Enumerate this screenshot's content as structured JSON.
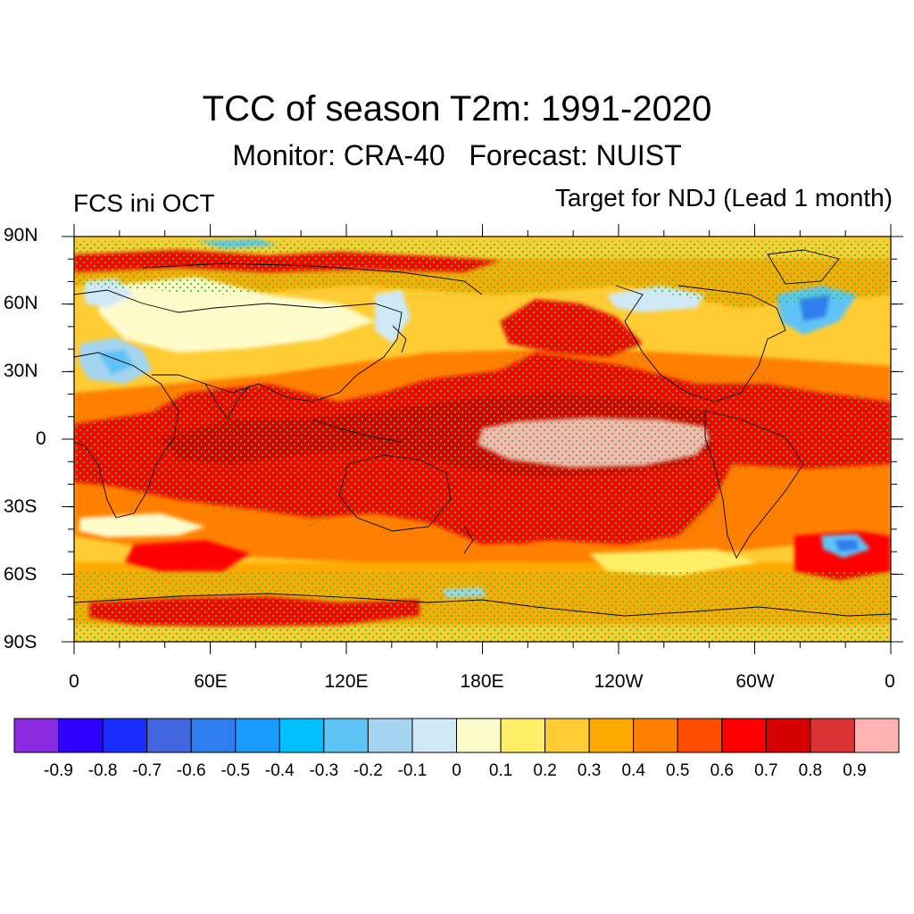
{
  "title": "TCC of season T2m: 1991-2020",
  "subtitle": "Monitor: CRA-40   Forecast: NUIST",
  "left_label": "FCS ini OCT",
  "right_label": "Target for NDJ (Lead 1 month)",
  "lat_labels": [
    "90N",
    "60N",
    "30N",
    "0",
    "30S",
    "60S",
    "90S"
  ],
  "lon_labels": [
    "0",
    "60E",
    "120E",
    "180E",
    "120W",
    "60W",
    "0"
  ],
  "colorbar": {
    "colors": [
      "#8a2be2",
      "#2d00ff",
      "#1a2eff",
      "#4166e0",
      "#2e7ef0",
      "#1a9bff",
      "#00c0ff",
      "#5ec4f5",
      "#a3d4f0",
      "#cfe9f7",
      "#fffccc",
      "#ffee66",
      "#ffcc33",
      "#ffaa00",
      "#ff8000",
      "#ff4d00",
      "#ff0000",
      "#d60000",
      "#d93333",
      "#ffb3b3"
    ],
    "labels": [
      "-0.9",
      "-0.8",
      "-0.7",
      "-0.6",
      "-0.5",
      "-0.4",
      "-0.3",
      "-0.2",
      "-0.1",
      "0",
      "0.1",
      "0.2",
      "0.3",
      "0.4",
      "0.5",
      "0.6",
      "0.7",
      "0.8",
      "0.9"
    ]
  },
  "stipple_color": "#33cc33",
  "coast_color": "#000000"
}
